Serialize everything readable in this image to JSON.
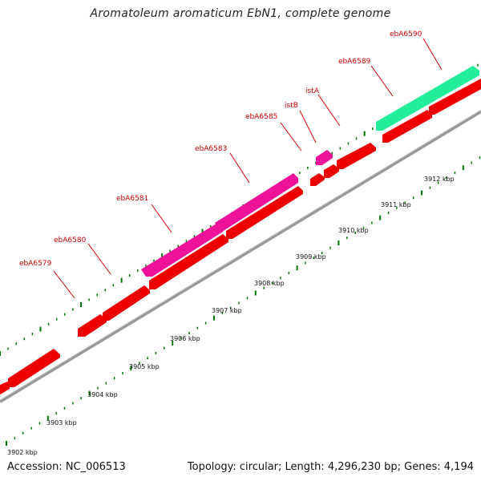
{
  "title": "Aromatoleum aromaticum EbN1, complete genome",
  "accession_text": "Accession: NC_006513",
  "stats_text": "Topology: circular; Length: 4,296,230 bp; Genes: 4,194",
  "colors": {
    "forward_gene": "#ff00aa",
    "reverse_gene": "#ff0000",
    "rna_gene": "#22ee99",
    "backbone": "#888888",
    "tick": "#007700",
    "label": "#cc0000"
  },
  "kbp_ticks": [
    "3902 kbp",
    "3903 kbp",
    "3904 kbp",
    "3905 kbp",
    "3906 kbp",
    "3907 kbp",
    "3908 kbp",
    "3909 kbp",
    "3910 kbp",
    "3911 kbp",
    "3912 kbp"
  ],
  "gene_labels": [
    "ebA6579",
    "ebA6580",
    "ebA6581",
    "ebA6583",
    "ebA6585",
    "istB",
    "istA",
    "ebA6589",
    "ebA6590"
  ]
}
